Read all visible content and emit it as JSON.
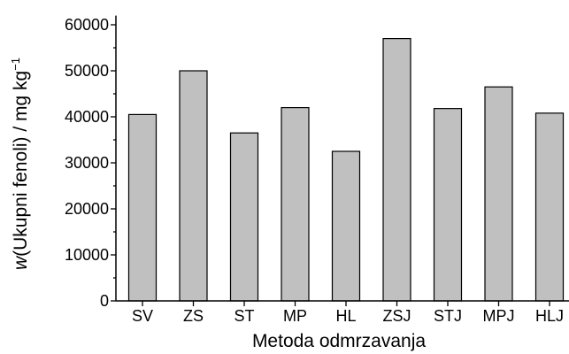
{
  "chart_data": {
    "type": "bar",
    "categories": [
      "SV",
      "ZS",
      "ST",
      "MP",
      "HL",
      "ZSJ",
      "STJ",
      "MPJ",
      "HLJ"
    ],
    "values": [
      40500,
      50000,
      36500,
      42000,
      32500,
      57000,
      41800,
      46500,
      40800
    ],
    "xlabel": "Metoda odmrzavanja",
    "ylabel": {
      "symbol": "w",
      "rest": "(Ukupni fenoli) / mg kg",
      "superscript": "−1"
    },
    "yticks": [
      0,
      10000,
      20000,
      30000,
      40000,
      50000,
      60000
    ],
    "ylim": [
      0,
      62000
    ],
    "grid": false,
    "legend": "none",
    "bar_color": "#c0c0c0"
  }
}
